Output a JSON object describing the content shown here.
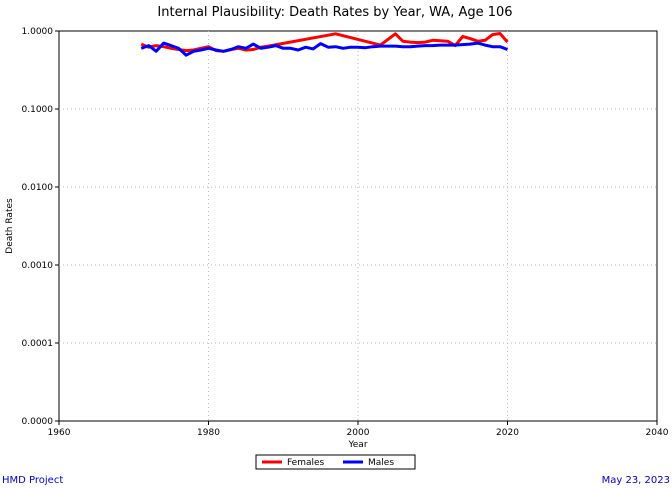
{
  "chart_data": {
    "type": "line",
    "title": "Internal Plausibility: Death Rates by Year, WA, Age 106",
    "xlabel": "Year",
    "ylabel": "Death Rates",
    "xlim": [
      1960,
      2040
    ],
    "ylim": [
      1e-05,
      1.0
    ],
    "yscale": "log",
    "x_ticks": [
      1960,
      1980,
      2000,
      2020,
      2040
    ],
    "x_tick_labels": [
      "1960",
      "1980",
      "2000",
      "2020",
      "2040"
    ],
    "y_ticks": [
      1e-05,
      0.0001,
      0.001,
      0.01,
      0.1,
      1.0
    ],
    "y_tick_labels": [
      "0.0000",
      "0.0001",
      "0.0010",
      "0.0100",
      "0.1000",
      "1.0000"
    ],
    "grid": true,
    "legend_placement": "bottom-center",
    "series": [
      {
        "name": "Females",
        "color": "#ff0000",
        "x": [
          1971,
          1972,
          1973,
          1974,
          1975,
          1976,
          1977,
          1978,
          1979,
          1980,
          1981,
          1982,
          1983,
          1984,
          1985,
          1986,
          1987,
          1988,
          1997,
          2003,
          2005,
          2006,
          2007,
          2008,
          2009,
          2010,
          2011,
          2012,
          2013,
          2014,
          2015,
          2016,
          2017,
          2018,
          2019,
          2020
        ],
        "y": [
          0.68,
          0.62,
          0.65,
          0.63,
          0.6,
          0.58,
          0.56,
          0.57,
          0.6,
          0.63,
          0.56,
          0.55,
          0.58,
          0.6,
          0.57,
          0.58,
          0.62,
          0.64,
          0.92,
          0.66,
          0.92,
          0.74,
          0.72,
          0.71,
          0.72,
          0.76,
          0.75,
          0.74,
          0.65,
          0.85,
          0.8,
          0.74,
          0.76,
          0.9,
          0.93,
          0.72
        ]
      },
      {
        "name": "Males",
        "color": "#0000ff",
        "x": [
          1971,
          1972,
          1973,
          1974,
          1975,
          1976,
          1977,
          1978,
          1979,
          1980,
          1981,
          1982,
          1983,
          1984,
          1985,
          1986,
          1987,
          1988,
          1989,
          1990,
          1991,
          1992,
          1993,
          1994,
          1995,
          1996,
          1997,
          1998,
          1999,
          2000,
          2001,
          2002,
          2003,
          2004,
          2005,
          2006,
          2007,
          2008,
          2009,
          2010,
          2011,
          2012,
          2013,
          2014,
          2015,
          2016,
          2017,
          2018,
          2019,
          2020
        ],
        "y": [
          0.6,
          0.65,
          0.55,
          0.7,
          0.65,
          0.6,
          0.49,
          0.55,
          0.57,
          0.6,
          0.57,
          0.55,
          0.58,
          0.63,
          0.6,
          0.68,
          0.6,
          0.62,
          0.65,
          0.6,
          0.6,
          0.57,
          0.62,
          0.59,
          0.69,
          0.62,
          0.63,
          0.6,
          0.62,
          0.62,
          0.61,
          0.63,
          0.64,
          0.64,
          0.64,
          0.63,
          0.63,
          0.64,
          0.65,
          0.65,
          0.66,
          0.66,
          0.66,
          0.67,
          0.68,
          0.7,
          0.66,
          0.63,
          0.63,
          0.58
        ]
      }
    ]
  },
  "footer": {
    "left": "HMD Project",
    "right": "May 23, 2023"
  }
}
